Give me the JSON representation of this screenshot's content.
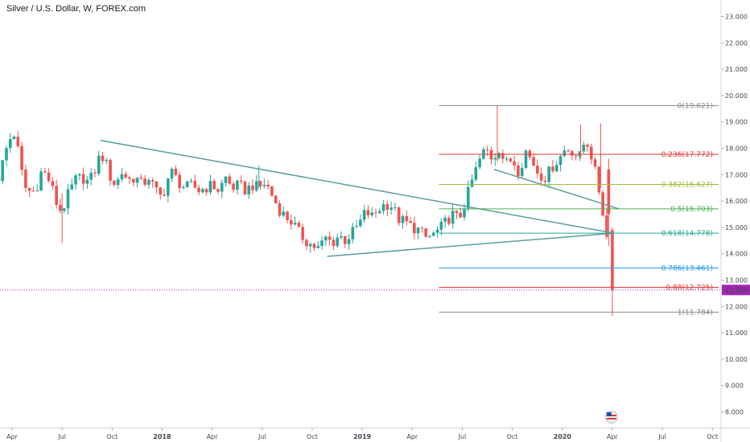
{
  "title": "Silver / U.S. Dollar, W, FOREX.com",
  "chart_data": {
    "type": "candlestick",
    "y_axis": {
      "ticks": [
        "23.000",
        "22.000",
        "21.000",
        "20.000",
        "19.000",
        "18.000",
        "17.000",
        "16.000",
        "15.000",
        "14.000",
        "13.000",
        "12.000",
        "11.000",
        "10.000",
        "9.000",
        "8.000"
      ],
      "ylim": [
        7.6,
        23.5
      ],
      "position": "right"
    },
    "x_axis": {
      "ticks": [
        {
          "label": "Apr",
          "t": 0.0,
          "bold": false
        },
        {
          "label": "Jul",
          "t": 3.0,
          "bold": false
        },
        {
          "label": "Oct",
          "t": 6.0,
          "bold": false
        },
        {
          "label": "2018",
          "t": 9.0,
          "bold": true
        },
        {
          "label": "Apr",
          "t": 12.0,
          "bold": false
        },
        {
          "label": "Jul",
          "t": 15.0,
          "bold": false
        },
        {
          "label": "Oct",
          "t": 18.0,
          "bold": false
        },
        {
          "label": "2019",
          "t": 21.0,
          "bold": true
        },
        {
          "label": "Apr",
          "t": 24.0,
          "bold": false
        },
        {
          "label": "Jul",
          "t": 27.0,
          "bold": false
        },
        {
          "label": "Oct",
          "t": 30.0,
          "bold": false
        },
        {
          "label": "2020",
          "t": 33.0,
          "bold": true
        },
        {
          "label": "Apr",
          "t": 36.0,
          "bold": false
        },
        {
          "label": "Jul",
          "t": 39.0,
          "bold": false
        },
        {
          "label": "Oct",
          "t": 42.0,
          "bold": false
        }
      ]
    },
    "close_path": [
      [
        -0.8,
        16.9
      ],
      [
        -0.5,
        17.6
      ],
      [
        -0.2,
        18.3
      ],
      [
        0.2,
        18.6
      ],
      [
        0.5,
        17.3
      ],
      [
        0.8,
        16.5
      ],
      [
        1.2,
        16.3
      ],
      [
        1.5,
        16.6
      ],
      [
        1.8,
        17.2
      ],
      [
        2.2,
        16.8
      ],
      [
        2.5,
        16.3
      ],
      [
        2.8,
        15.6
      ],
      [
        3.1,
        15.8
      ],
      [
        3.4,
        16.3
      ],
      [
        3.8,
        16.8
      ],
      [
        4.2,
        16.9
      ],
      [
        4.6,
        16.7
      ],
      [
        5.0,
        17.2
      ],
      [
        5.3,
        17.8
      ],
      [
        5.6,
        17.5
      ],
      [
        5.9,
        16.9
      ],
      [
        6.2,
        16.6
      ],
      [
        6.6,
        17.1
      ],
      [
        7.0,
        16.8
      ],
      [
        7.4,
        16.9
      ],
      [
        7.8,
        16.6
      ],
      [
        8.2,
        16.9
      ],
      [
        8.6,
        16.4
      ],
      [
        9.0,
        16.1
      ],
      [
        9.3,
        16.8
      ],
      [
        9.6,
        17.1
      ],
      [
        10.0,
        16.7
      ],
      [
        10.4,
        16.5
      ],
      [
        10.8,
        16.6
      ],
      [
        11.2,
        16.4
      ],
      [
        11.6,
        16.5
      ],
      [
        12.0,
        16.6
      ],
      [
        12.4,
        16.4
      ],
      [
        12.8,
        16.9
      ],
      [
        13.2,
        16.5
      ],
      [
        13.6,
        16.6
      ],
      [
        14.0,
        16.4
      ],
      [
        14.4,
        16.6
      ],
      [
        14.8,
        16.5
      ],
      [
        15.2,
        16.7
      ],
      [
        15.6,
        16.2
      ],
      [
        16.0,
        15.7
      ],
      [
        16.4,
        15.4
      ],
      [
        16.8,
        15.2
      ],
      [
        17.2,
        14.8
      ],
      [
        17.6,
        14.5
      ],
      [
        18.0,
        14.3
      ],
      [
        18.4,
        14.2
      ],
      [
        18.8,
        14.6
      ],
      [
        19.2,
        14.4
      ],
      [
        19.6,
        14.7
      ],
      [
        20.0,
        14.5
      ],
      [
        20.4,
        14.8
      ],
      [
        20.8,
        15.1
      ],
      [
        21.2,
        15.6
      ],
      [
        21.6,
        15.4
      ],
      [
        22.0,
        15.7
      ],
      [
        22.4,
        15.9
      ],
      [
        22.8,
        15.8
      ],
      [
        23.2,
        15.3
      ],
      [
        23.6,
        15.2
      ],
      [
        24.0,
        15.0
      ],
      [
        24.4,
        14.9
      ],
      [
        24.8,
        14.6
      ],
      [
        25.2,
        14.7
      ],
      [
        25.6,
        14.9
      ],
      [
        26.0,
        15.2
      ],
      [
        26.4,
        15.5
      ],
      [
        26.8,
        15.3
      ],
      [
        27.2,
        16.0
      ],
      [
        27.6,
        16.8
      ],
      [
        28.0,
        17.5
      ],
      [
        28.4,
        18.0
      ],
      [
        28.8,
        17.6
      ],
      [
        29.2,
        18.0
      ],
      [
        29.6,
        17.4
      ],
      [
        30.0,
        17.6
      ],
      [
        30.4,
        17.1
      ],
      [
        30.8,
        17.9
      ],
      [
        31.2,
        17.5
      ],
      [
        31.6,
        17.0
      ],
      [
        32.0,
        16.9
      ],
      [
        32.4,
        17.3
      ],
      [
        32.8,
        17.6
      ],
      [
        33.2,
        18.0
      ],
      [
        33.6,
        17.9
      ],
      [
        34.0,
        17.6
      ],
      [
        34.4,
        18.4
      ],
      [
        34.8,
        17.6
      ],
      [
        35.2,
        16.4
      ],
      [
        35.6,
        15.0
      ],
      [
        36.0,
        12.63
      ]
    ],
    "current_price": "12.624",
    "trendlines": [
      {
        "points": [
          [
            5.3,
            18.3
          ],
          [
            36.1,
            14.78
          ]
        ],
        "color": "#5a9e9e"
      },
      {
        "points": [
          [
            18.9,
            13.9
          ],
          [
            36.1,
            14.78
          ]
        ],
        "color": "#5a9e9e"
      },
      {
        "points": [
          [
            28.9,
            17.2
          ],
          [
            36.4,
            15.7
          ]
        ],
        "color": "#5a9e9e"
      }
    ],
    "fibonacci": {
      "x_start": 25.6,
      "levels": [
        {
          "label": "0(19.621)",
          "value": 19.621,
          "color": "#888888"
        },
        {
          "label": "0.236(17.772)",
          "value": 17.772,
          "color": "#e53935"
        },
        {
          "label": "0.382(16.627)",
          "value": 16.627,
          "color": "#9cbe3a"
        },
        {
          "label": "0.5(15.703)",
          "value": 15.703,
          "color": "#4caf50"
        },
        {
          "label": "0.618(14.778)",
          "value": 14.778,
          "color": "#26a69a"
        },
        {
          "label": "0.786(13.461)",
          "value": 13.461,
          "color": "#2196f3"
        },
        {
          "label": "0.88(12.725)",
          "value": 12.725,
          "color": "#e53935"
        },
        {
          "label": "1(11.784)",
          "value": 11.784,
          "color": "#888888"
        }
      ]
    },
    "colors": {
      "up": "#26a69a",
      "down": "#ef5350",
      "price_tag": "#9c27b0",
      "grid_axis": "#e0e3eb"
    }
  }
}
